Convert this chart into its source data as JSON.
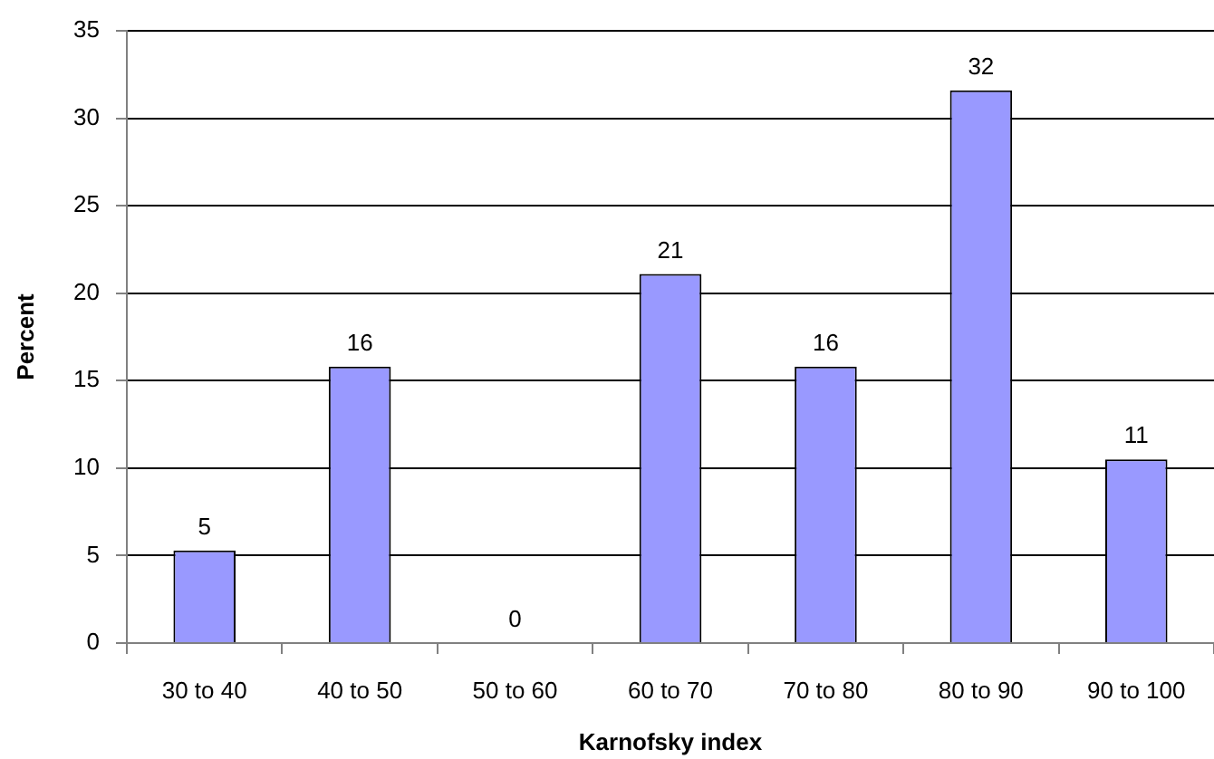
{
  "chart_data": {
    "type": "bar",
    "xlabel": "Karnofsky index",
    "ylabel": "Percent",
    "categories": [
      "30 to 40",
      "40 to 50",
      "50 to 60",
      "60 to 70",
      "70 to 80",
      "80 to 90",
      "90 to 100"
    ],
    "values": [
      5.3,
      15.8,
      0,
      21.1,
      15.8,
      31.6,
      10.5
    ],
    "value_labels": [
      "5",
      "16",
      "0",
      "21",
      "16",
      "32",
      "11"
    ],
    "color": "#9999ff",
    "ylim": [
      0,
      35
    ],
    "yticks": [
      0,
      5,
      10,
      15,
      20,
      25,
      30,
      35
    ],
    "grid": "y"
  }
}
